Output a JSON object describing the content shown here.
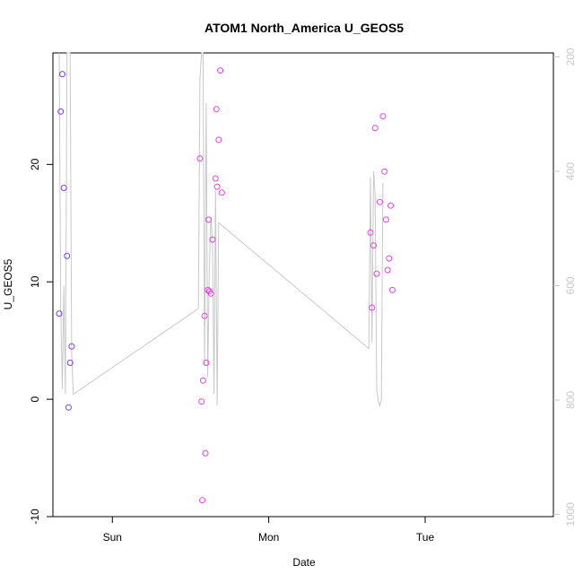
{
  "chart_data": {
    "type": "scatter",
    "title": "ATOM1 North_America U_GEOS5",
    "xlabel": "Date",
    "ylabel": "U_GEOS5",
    "x_ticks": [
      "Sun",
      "Mon",
      "Tue"
    ],
    "x_ticks_day": [
      1,
      2,
      3
    ],
    "xlim_day": [
      0.62,
      3.82
    ],
    "ylim": [
      -10,
      29.5
    ],
    "y_ticks": [
      -10,
      0,
      10,
      20
    ],
    "y_tick_labels": [
      "-10",
      "0",
      "10",
      "20"
    ],
    "right_axis": {
      "color": "#c8c8c8",
      "lim": [
        1004,
        193
      ],
      "ticks": [
        200,
        400,
        600,
        800,
        1000
      ],
      "tick_labels": [
        "200",
        "400",
        "600",
        "800",
        "1000"
      ]
    },
    "series": [
      {
        "kind": "points",
        "color": "#7a3cf0",
        "points": [
          [
            0.66,
            7.3
          ],
          [
            0.67,
            24.5
          ],
          [
            0.68,
            27.7
          ],
          [
            0.69,
            18.0
          ],
          [
            0.71,
            12.2
          ],
          [
            0.72,
            -0.7
          ],
          [
            0.73,
            3.1
          ],
          [
            0.74,
            4.5
          ]
        ]
      },
      {
        "kind": "points",
        "color": "#e83fe8",
        "points": [
          [
            1.56,
            20.5
          ],
          [
            1.57,
            -0.2
          ],
          [
            1.575,
            -8.6
          ],
          [
            1.58,
            1.6
          ],
          [
            1.59,
            7.1
          ],
          [
            1.595,
            -4.6
          ],
          [
            1.6,
            3.1
          ],
          [
            1.61,
            9.3
          ],
          [
            1.615,
            15.3
          ],
          [
            1.62,
            9.2
          ],
          [
            1.63,
            9.0
          ],
          [
            1.64,
            13.6
          ],
          [
            1.66,
            18.8
          ],
          [
            1.665,
            24.7
          ],
          [
            1.67,
            18.1
          ],
          [
            1.68,
            22.1
          ],
          [
            1.69,
            28.0
          ],
          [
            1.7,
            17.6
          ],
          [
            2.65,
            14.2
          ],
          [
            2.66,
            7.8
          ],
          [
            2.67,
            13.1
          ],
          [
            2.68,
            23.1
          ],
          [
            2.69,
            10.7
          ],
          [
            2.71,
            16.8
          ],
          [
            2.73,
            24.1
          ],
          [
            2.74,
            19.4
          ],
          [
            2.75,
            15.3
          ],
          [
            2.76,
            11.0
          ],
          [
            2.77,
            12.0
          ],
          [
            2.78,
            16.5
          ],
          [
            2.79,
            9.3
          ]
        ]
      },
      {
        "kind": "line",
        "axis": "right",
        "color": "#c8c8c8",
        "points": [
          [
            0.66,
            190
          ],
          [
            0.67,
            640
          ],
          [
            0.68,
            780
          ],
          [
            0.69,
            600
          ],
          [
            0.7,
            790
          ],
          [
            0.71,
            190
          ],
          [
            0.72,
            190
          ],
          [
            0.73,
            190
          ],
          [
            0.74,
            720
          ],
          [
            0.75,
            790
          ],
          [
            1.55,
            640
          ],
          [
            1.56,
            240
          ],
          [
            1.57,
            190
          ],
          [
            1.58,
            190
          ],
          [
            1.59,
            740
          ],
          [
            1.6,
            280
          ],
          [
            1.61,
            760
          ],
          [
            1.62,
            570
          ],
          [
            1.63,
            480
          ],
          [
            1.64,
            520
          ],
          [
            1.65,
            790
          ],
          [
            1.66,
            430
          ],
          [
            1.67,
            810
          ],
          [
            1.68,
            490
          ],
          [
            2.64,
            710
          ],
          [
            2.65,
            410
          ],
          [
            2.66,
            700
          ],
          [
            2.67,
            400
          ],
          [
            2.68,
            440
          ],
          [
            2.69,
            780
          ],
          [
            2.7,
            800
          ],
          [
            2.71,
            810
          ],
          [
            2.72,
            800
          ],
          [
            2.73,
            420
          ]
        ]
      }
    ]
  }
}
